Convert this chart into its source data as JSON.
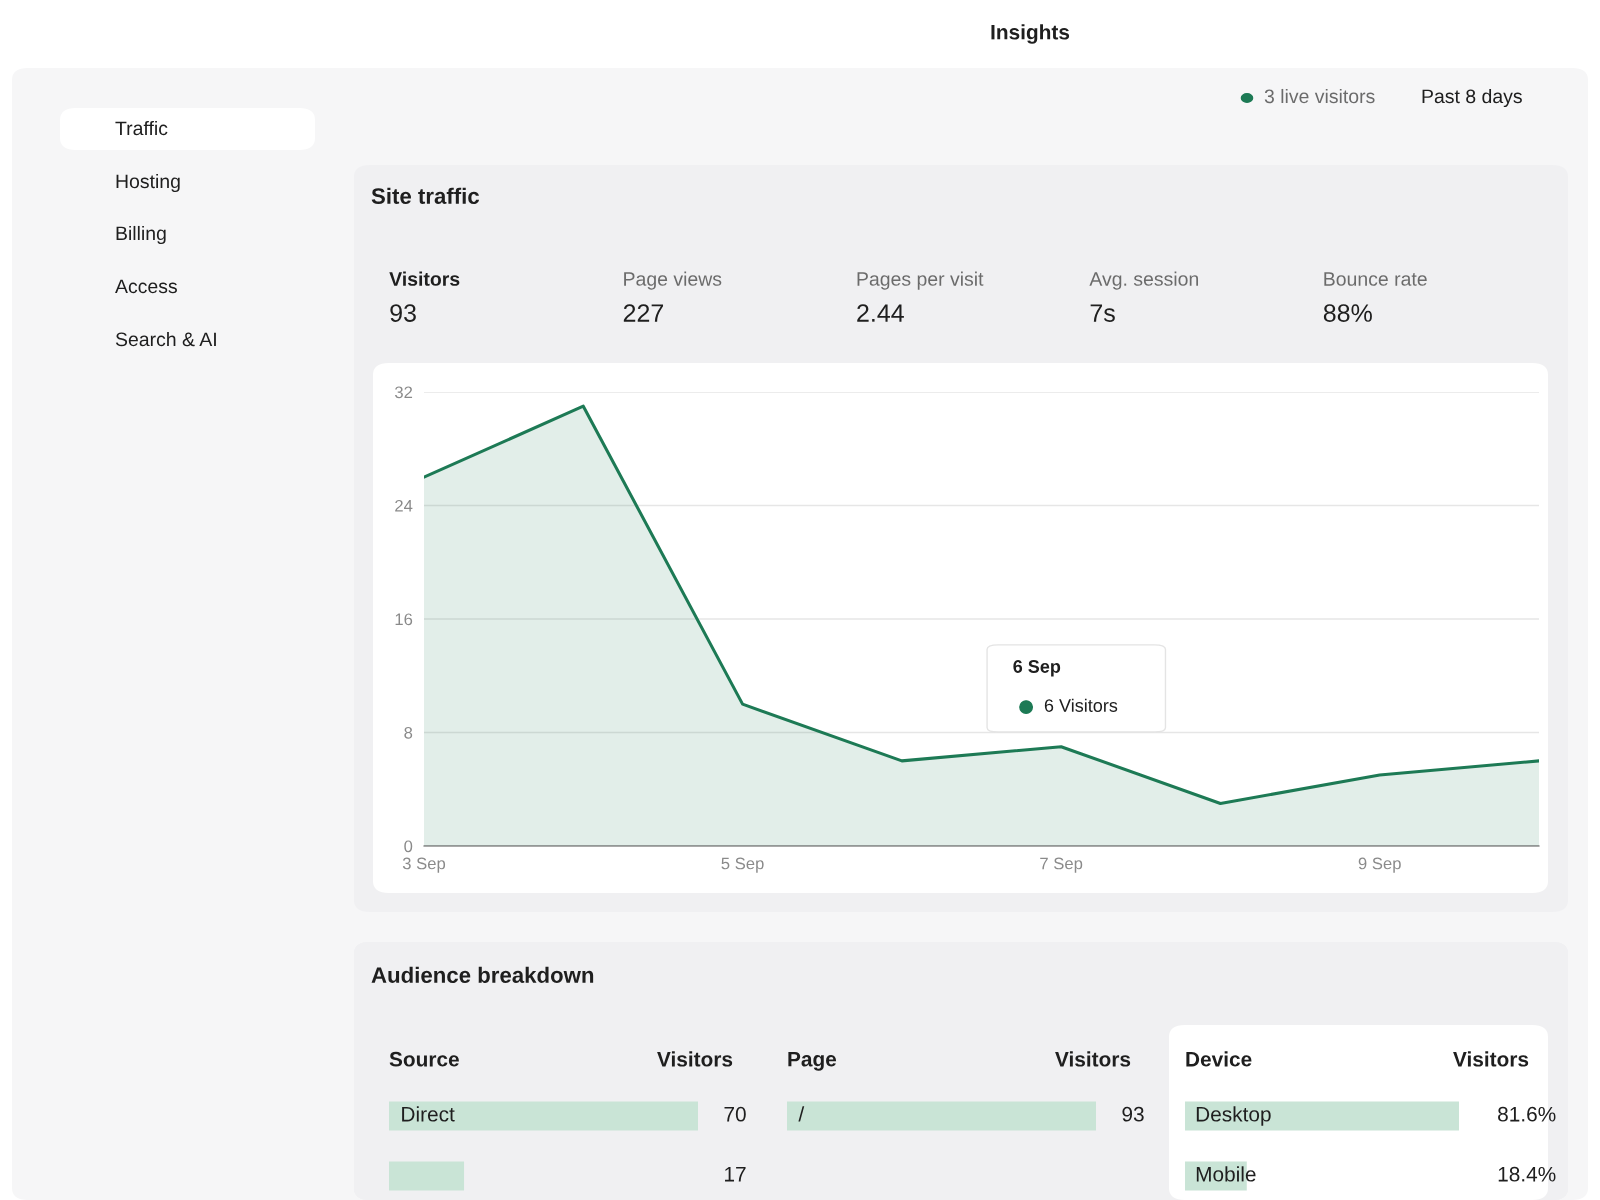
{
  "chart_data": [
    {
      "type": "other",
      "title": "Insights",
      "annotations": [
        "Traffic",
        "Hosting",
        "Billing",
        "Access",
        "Search & AI",
        "3 live visitors",
        "Past 8 days",
        "Audience breakdown"
      ]
    },
    {
      "type": "other",
      "categories": [
        "Visitors",
        "Page views",
        "Pages per visit",
        "Avg. session",
        "Bounce rate"
      ],
      "value_labels": [
        "93",
        "227",
        "2.44",
        "7s",
        "88%"
      ]
    },
    {
      "type": "area",
      "title": "Site traffic",
      "x": [
        "--09-03",
        "--09-04",
        "--09-05",
        "--09-06",
        "--09-07",
        "--09-08",
        "--09-09",
        "--09-10"
      ],
      "series": [
        {
          "color": "#1d7a55",
          "values": [
            26,
            31,
            10,
            6,
            7,
            3,
            5,
            6
          ]
        }
      ],
      "xlim": [
        "--09-03",
        "--09-10"
      ],
      "xticks": [
        {
          "value": "--09-03",
          "label": "3 Sep"
        },
        {
          "value": "--09-05",
          "label": "5 Sep"
        },
        {
          "value": "--09-07",
          "label": "7 Sep"
        },
        {
          "value": "--09-09",
          "label": "9 Sep"
        }
      ],
      "ylim": [
        0,
        32
      ],
      "yticks": [
        0,
        8,
        16,
        24,
        32
      ],
      "grid": "y",
      "annotations": [
        "6 Sep",
        "6 Visitors"
      ]
    },
    {
      "type": "bar",
      "orientation": "horizontal",
      "ylabel": "Source",
      "xlabel": "Visitors",
      "categories": [
        "Direct",
        null
      ],
      "values": [
        70,
        17
      ],
      "color": "#c9e4d6",
      "data_labels": true
    },
    {
      "type": "bar",
      "orientation": "horizontal",
      "ylabel": "Page",
      "xlabel": "Visitors",
      "categories": [
        "/"
      ],
      "values": [
        93
      ],
      "color": "#c9e4d6",
      "data_labels": true
    },
    {
      "type": "bar",
      "orientation": "horizontal",
      "ylabel": "Device",
      "xlabel": "Visitors",
      "categories": [
        "Desktop",
        "Mobile"
      ],
      "values": [
        81.6,
        18.4
      ],
      "color": "#c9e4d6",
      "value_labels": [
        "81.6%",
        "18.4%"
      ]
    }
  ]
}
